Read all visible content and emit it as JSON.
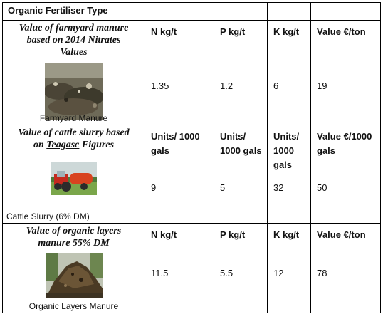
{
  "table": {
    "header_title": "Organic Fertiliser Type",
    "sections": [
      {
        "title_lines": [
          "Value of farmyard manure",
          "based on 2014 Nitrates",
          "Values"
        ],
        "caption": "Farmyard Manure",
        "image": "farmyard-manure-photo",
        "headers": [
          "N kg/t",
          "P kg/t",
          "K kg/t",
          "Value €/ton"
        ],
        "values": [
          "1.35",
          "1.2",
          "6",
          "19"
        ]
      },
      {
        "title_pre": "Value of cattle slurry based",
        "title_on": "on ",
        "title_ul": "Teagasc",
        "title_post": " Figures",
        "caption": "Cattle Slurry (6% DM)",
        "image": "cattle-slurry-tanker-photo",
        "headers": [
          "Units/ 1000 gals",
          "Units/ 1000 gals",
          "Units/ 1000 gals",
          "Value €/1000 gals"
        ],
        "values": [
          "9",
          "5",
          "32",
          "50"
        ]
      },
      {
        "title_lines": [
          "Value of organic layers",
          "manure 55% DM"
        ],
        "caption": "Organic Layers  Manure",
        "image": "organic-layers-manure-photo",
        "headers": [
          "N kg/t",
          "P kg/t",
          "K kg/t",
          "Value €/ton"
        ],
        "values": [
          "11.5",
          "5.5",
          "12",
          "78"
        ]
      }
    ]
  }
}
